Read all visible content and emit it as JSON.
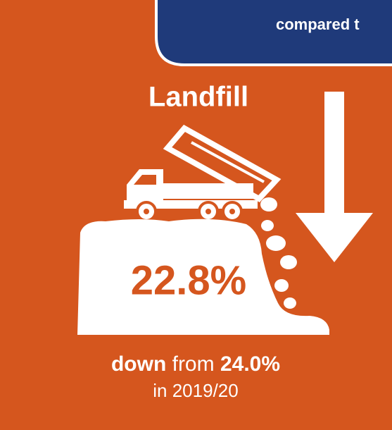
{
  "header": {
    "text": "compared t"
  },
  "title": "Landfill",
  "value": "22.8%",
  "comparison": {
    "lead": "down",
    "middle": "from",
    "previous": "24.0%",
    "period": "in 2019/20"
  }
}
